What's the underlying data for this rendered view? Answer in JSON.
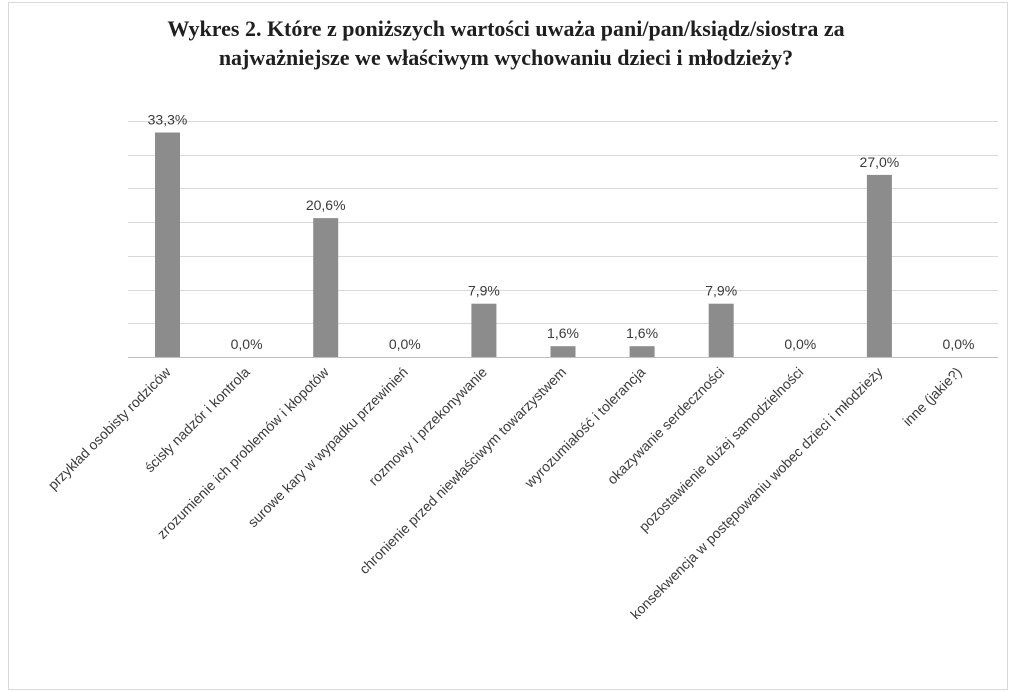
{
  "chart_data": {
    "type": "bar",
    "title": "Wykres 2. Które z poniższych wartości uważa pani/pan/ksiądz/siostra za najważniejsze we właściwym wychowaniu dzieci i młodzieży?",
    "title_lines": [
      "Wykres 2. Które z poniższych wartości uważa pani/pan/ksiądz/siostra za",
      "najważniejsze we właściwym wychowaniu dzieci i młodzieży?"
    ],
    "categories": [
      "przykład osobisty rodziców",
      "ścisły nadzór i kontrola",
      "zrozumienie ich problemów i kłopotów",
      "surowe kary w wypadku przewinień",
      "rozmowy i przekonywanie",
      "chronienie przed niewłaściwym towarzystwem",
      "wyrozumiałość i tolerancja",
      "okazywanie serdeczności",
      "pozostawienie dużej samodzielności",
      "konsekwencja w postępowaniu wobec dzieci i młodzieży",
      "inne (jakie?)"
    ],
    "values": [
      33.3,
      0.0,
      20.6,
      0.0,
      7.9,
      1.6,
      1.6,
      7.9,
      0.0,
      27.0,
      0.0
    ],
    "data_labels": [
      "33,3%",
      "0,0%",
      "20,6%",
      "0,0%",
      "7,9%",
      "1,6%",
      "1,6%",
      "7,9%",
      "0,0%",
      "27,0%",
      "0,0%"
    ],
    "xlabel": "",
    "ylabel": "",
    "ylim": [
      0,
      35
    ],
    "grid": true,
    "legend": "none",
    "colors": {
      "bar": "#8c8c8c",
      "grid": "#d9d9d9"
    }
  }
}
